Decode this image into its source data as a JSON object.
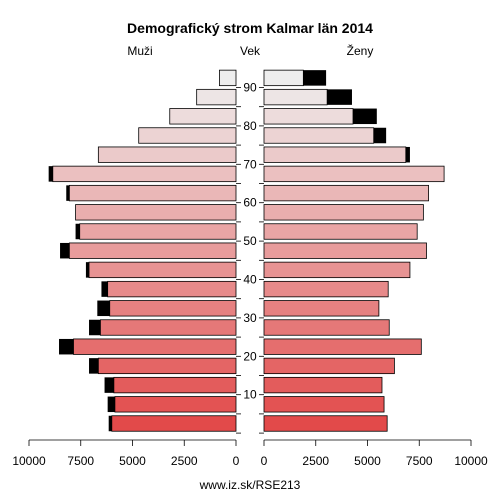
{
  "chart_data": {
    "type": "bar",
    "title": "Demografický strom Kalmar län 2014",
    "left_label": "Muži",
    "center_label": "Vek",
    "right_label": "Ženy",
    "footer": "www.iz.sk/RSE213",
    "age_ticks": [
      "10",
      "20",
      "30",
      "40",
      "50",
      "60",
      "70",
      "80",
      "90"
    ],
    "x_ticks_left": [
      "10000",
      "7500",
      "5000",
      "2500",
      "0"
    ],
    "x_ticks_right": [
      "0",
      "2500",
      "5000",
      "7500",
      "10000"
    ],
    "xlim": [
      0,
      10000
    ],
    "age_groups": [
      "0-4",
      "5-9",
      "10-14",
      "15-19",
      "20-24",
      "25-29",
      "30-34",
      "35-39",
      "40-44",
      "45-49",
      "50-54",
      "55-59",
      "60-64",
      "65-69",
      "70-74",
      "75-79",
      "80-84",
      "85-89",
      "90+"
    ],
    "series": [
      {
        "name": "Muži",
        "values": [
          6000,
          5850,
          5900,
          6650,
          7850,
          6550,
          6100,
          6200,
          7100,
          8050,
          7550,
          7750,
          8050,
          8850,
          6650,
          4700,
          3200,
          1900,
          800
        ],
        "excess": [
          150,
          350,
          450,
          450,
          700,
          550,
          600,
          300,
          150,
          450,
          200,
          0,
          150,
          200,
          0,
          0,
          0,
          0,
          0
        ]
      },
      {
        "name": "Ženy",
        "values": [
          5950,
          5800,
          5700,
          6300,
          7600,
          6050,
          5550,
          6000,
          7050,
          7850,
          7400,
          7700,
          7950,
          8700,
          6850,
          5300,
          4300,
          3050,
          1900
        ],
        "excess": [
          0,
          0,
          0,
          0,
          0,
          0,
          0,
          0,
          0,
          0,
          0,
          0,
          0,
          0,
          200,
          600,
          1150,
          1200,
          1100
        ]
      }
    ],
    "colors": {
      "young": "#e24a4a",
      "old": "#eeeeee",
      "excess": "#000000",
      "axis": "#000000"
    }
  }
}
